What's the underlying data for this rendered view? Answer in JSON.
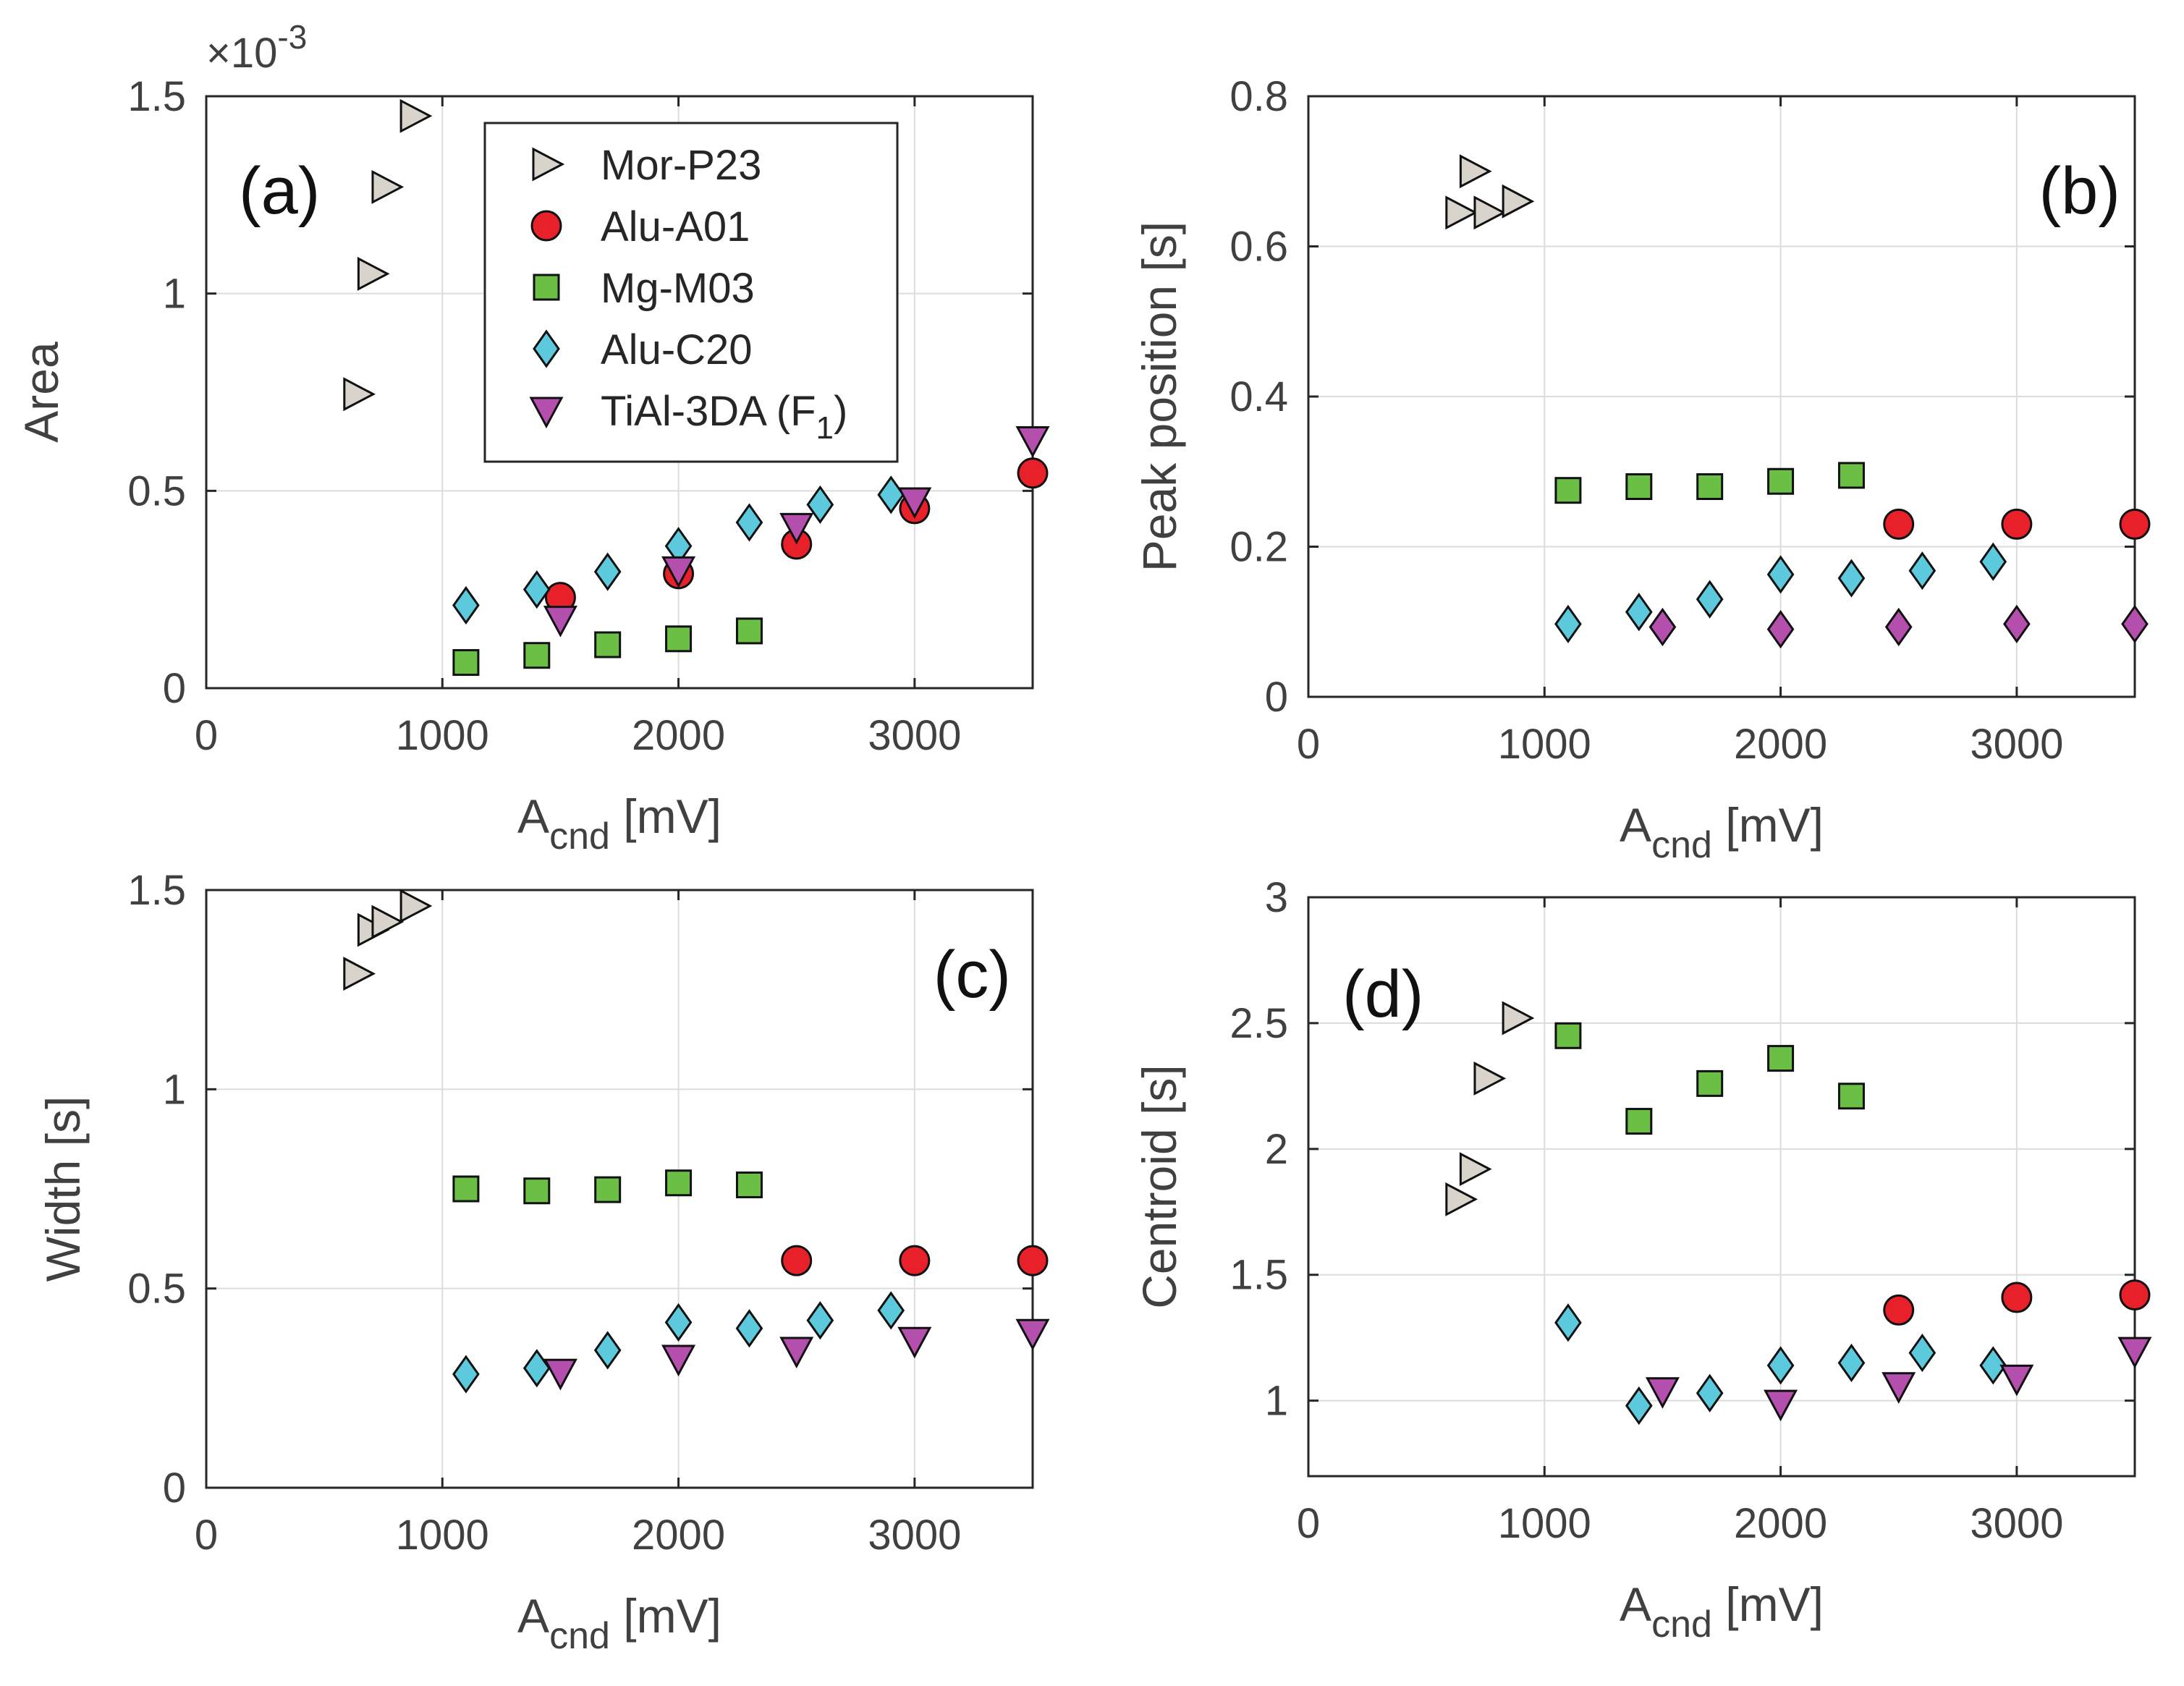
{
  "chart_data": [
    {
      "id": "a",
      "type": "scatter",
      "panel_label": "(a)",
      "ylabel": "Area",
      "xlabel": "A",
      "xlabel_sub": "cnd",
      "xlabel_unit": "[mV]",
      "exponent": "×10",
      "exponent_power": "-3",
      "xlim": [
        0,
        3500
      ],
      "ylim": [
        0,
        1.5
      ],
      "xticks": [
        0,
        1000,
        2000,
        3000
      ],
      "xtick_labels": [
        "0",
        "1000",
        "2000",
        "3000"
      ],
      "yticks": [
        0,
        0.5,
        1,
        1.5
      ],
      "ytick_labels": [
        "0",
        "0.5",
        "1",
        "1.5"
      ],
      "grid": true,
      "series": [
        {
          "name": "Mor-P23",
          "points": [
            [
              640,
              0.745
            ],
            [
              700,
              1.05
            ],
            [
              760,
              1.27
            ],
            [
              880,
              1.45
            ]
          ]
        },
        {
          "name": "Alu-A01",
          "points": [
            [
              1500,
              0.23
            ],
            [
              2000,
              0.29
            ],
            [
              2500,
              0.365
            ],
            [
              3000,
              0.455
            ],
            [
              3500,
              0.545
            ]
          ]
        },
        {
          "name": "Mg-M03",
          "points": [
            [
              1100,
              0.065
            ],
            [
              1400,
              0.083
            ],
            [
              1700,
              0.11
            ],
            [
              2000,
              0.125
            ],
            [
              2300,
              0.145
            ]
          ]
        },
        {
          "name": "Alu-C20",
          "points": [
            [
              1100,
              0.21
            ],
            [
              1400,
              0.25
            ],
            [
              1700,
              0.295
            ],
            [
              2000,
              0.36
            ],
            [
              2300,
              0.42
            ],
            [
              2600,
              0.465
            ],
            [
              2900,
              0.49
            ]
          ]
        },
        {
          "name": "TiAl-3DA (F1)",
          "points": [
            [
              1500,
              0.175
            ],
            [
              2000,
              0.3
            ],
            [
              2500,
              0.41
            ],
            [
              3000,
              0.475
            ],
            [
              3500,
              0.63
            ]
          ]
        }
      ]
    },
    {
      "id": "b",
      "type": "scatter",
      "panel_label": "(b)",
      "ylabel": "Peak position [s]",
      "xlabel": "A",
      "xlabel_sub": "cnd",
      "xlabel_unit": "[mV]",
      "xlim": [
        0,
        3500
      ],
      "ylim": [
        0,
        0.8
      ],
      "xticks": [
        0,
        1000,
        2000,
        3000
      ],
      "xtick_labels": [
        "0",
        "1000",
        "2000",
        "3000"
      ],
      "yticks": [
        0,
        0.2,
        0.4,
        0.6,
        0.8
      ],
      "ytick_labels": [
        "0",
        "0.2",
        "0.4",
        "0.6",
        "0.8"
      ],
      "grid": true,
      "series": [
        {
          "name": "Mor-P23",
          "points": [
            [
              640,
              0.645
            ],
            [
              700,
              0.7
            ],
            [
              760,
              0.645
            ],
            [
              880,
              0.66
            ]
          ]
        },
        {
          "name": "Alu-A01",
          "points": [
            [
              2500,
              0.23
            ],
            [
              3000,
              0.23
            ],
            [
              3500,
              0.23
            ]
          ]
        },
        {
          "name": "Mg-M03",
          "points": [
            [
              1100,
              0.275
            ],
            [
              1400,
              0.28
            ],
            [
              1700,
              0.28
            ],
            [
              2000,
              0.287
            ],
            [
              2300,
              0.295
            ]
          ]
        },
        {
          "name": "Alu-C20",
          "points": [
            [
              1100,
              0.097
            ],
            [
              1400,
              0.113
            ],
            [
              1700,
              0.13
            ],
            [
              2000,
              0.163
            ],
            [
              2300,
              0.158
            ],
            [
              2600,
              0.168
            ],
            [
              2900,
              0.18
            ]
          ]
        },
        {
          "name": "TiAl-3DA (F1)",
          "marker_override": "diamond",
          "points": [
            [
              1500,
              0.093
            ],
            [
              2000,
              0.09
            ],
            [
              2500,
              0.093
            ],
            [
              3000,
              0.097
            ],
            [
              3500,
              0.097
            ]
          ]
        }
      ]
    },
    {
      "id": "c",
      "type": "scatter",
      "panel_label": "(c)",
      "ylabel": "Width [s]",
      "xlabel": "A",
      "xlabel_sub": "cnd",
      "xlabel_unit": "[mV]",
      "xlim": [
        0,
        3500
      ],
      "ylim": [
        0,
        1.5
      ],
      "xticks": [
        0,
        1000,
        2000,
        3000
      ],
      "xtick_labels": [
        "0",
        "1000",
        "2000",
        "3000"
      ],
      "yticks": [
        0,
        0.5,
        1,
        1.5
      ],
      "ytick_labels": [
        "0",
        "0.5",
        "1",
        "1.5"
      ],
      "grid": true,
      "series": [
        {
          "name": "Mor-P23",
          "points": [
            [
              640,
              1.29
            ],
            [
              700,
              1.4
            ],
            [
              760,
              1.42
            ],
            [
              880,
              1.46
            ]
          ]
        },
        {
          "name": "Alu-A01",
          "points": [
            [
              2500,
              0.57
            ],
            [
              3000,
              0.57
            ],
            [
              3500,
              0.57
            ]
          ]
        },
        {
          "name": "Mg-M03",
          "points": [
            [
              1100,
              0.75
            ],
            [
              1400,
              0.745
            ],
            [
              1700,
              0.748
            ],
            [
              2000,
              0.765
            ],
            [
              2300,
              0.76
            ]
          ]
        },
        {
          "name": "Alu-C20",
          "points": [
            [
              1100,
              0.285
            ],
            [
              1400,
              0.3
            ],
            [
              1700,
              0.345
            ],
            [
              2000,
              0.415
            ],
            [
              2300,
              0.4
            ],
            [
              2600,
              0.42
            ],
            [
              2900,
              0.445
            ]
          ]
        },
        {
          "name": "TiAl-3DA (F1)",
          "points": [
            [
              1500,
              0.29
            ],
            [
              2000,
              0.325
            ],
            [
              2500,
              0.345
            ],
            [
              3000,
              0.37
            ],
            [
              3500,
              0.39
            ]
          ]
        }
      ]
    },
    {
      "id": "d",
      "type": "scatter",
      "panel_label": "(d)",
      "ylabel": "Centroid [s]",
      "xlabel": "A",
      "xlabel_sub": "cnd",
      "xlabel_unit": "[mV]",
      "xlim": [
        0,
        3500
      ],
      "ylim": [
        0.7,
        3
      ],
      "xticks": [
        0,
        1000,
        2000,
        3000
      ],
      "xtick_labels": [
        "0",
        "1000",
        "2000",
        "3000"
      ],
      "yticks": [
        1,
        1.5,
        2,
        2.5,
        3
      ],
      "ytick_labels": [
        "1",
        "1.5",
        "2",
        "2.5",
        "3"
      ],
      "grid": true,
      "series": [
        {
          "name": "Mor-P23",
          "points": [
            [
              640,
              1.8
            ],
            [
              700,
              1.92
            ],
            [
              760,
              2.28
            ],
            [
              880,
              2.52
            ]
          ]
        },
        {
          "name": "Alu-A01",
          "points": [
            [
              2500,
              1.36
            ],
            [
              3000,
              1.41
            ],
            [
              3500,
              1.42
            ]
          ]
        },
        {
          "name": "Mg-M03",
          "points": [
            [
              1100,
              2.45
            ],
            [
              1400,
              2.11
            ],
            [
              1700,
              2.26
            ],
            [
              2000,
              2.36
            ],
            [
              2300,
              2.21
            ]
          ]
        },
        {
          "name": "Alu-C20",
          "points": [
            [
              1100,
              1.31
            ],
            [
              1400,
              0.98
            ],
            [
              1700,
              1.03
            ],
            [
              2000,
              1.14
            ],
            [
              2300,
              1.15
            ],
            [
              2600,
              1.19
            ],
            [
              2900,
              1.14
            ]
          ]
        },
        {
          "name": "TiAl-3DA (F1)",
          "points": [
            [
              1500,
              1.04
            ],
            [
              2000,
              0.99
            ],
            [
              2500,
              1.06
            ],
            [
              3000,
              1.09
            ],
            [
              3500,
              1.2
            ]
          ]
        }
      ]
    }
  ],
  "legend": {
    "placement": "panel-a-upper-center",
    "entries": [
      {
        "name": "Mor-P23",
        "label": "Mor-P23",
        "marker": "triangle-right",
        "color": "#d8d4cc"
      },
      {
        "name": "Alu-A01",
        "label": "Alu-A01",
        "marker": "circle",
        "color": "#e8202a"
      },
      {
        "name": "Mg-M03",
        "label": "Mg-M03",
        "marker": "square",
        "color": "#6cbf45"
      },
      {
        "name": "Alu-C20",
        "label": "Alu-C20",
        "marker": "diamond",
        "color": "#5cc9dc"
      },
      {
        "name": "TiAl-3DA (F1)",
        "label": "TiAl-3DA (F",
        "label_sub": "1",
        "label_end": ")",
        "marker": "triangle-down",
        "color": "#b54fae"
      }
    ]
  }
}
